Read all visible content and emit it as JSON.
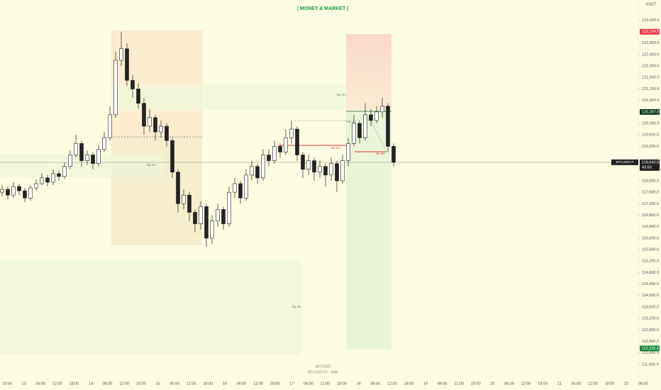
{
  "chart_data": {
    "type": "candlestick",
    "title": "| MONEY & MARKET |",
    "unit": "USDT",
    "date": "18/7/2025",
    "footer": "BTCUSDT.P · 60M",
    "time_labels": [
      "18:00",
      "13",
      "06:00",
      "12:00",
      "18:00",
      "14",
      "06:00",
      "12:00",
      "18:00",
      "15",
      "06:00",
      "12:00",
      "18:00",
      "16",
      "06:00",
      "12:00",
      "18:00",
      "17",
      "06:00",
      "12:00",
      "18:00",
      "18",
      "06:00",
      "12:00",
      "18:00",
      "19",
      "06:00",
      "12:00",
      "18:00",
      "20",
      "06:00",
      "12:00",
      "18:00",
      "21",
      "06:00",
      "12:00",
      "18:00",
      "22",
      "06:00"
    ],
    "open": [
      117600,
      117700,
      117500,
      117800,
      117650,
      117400,
      117750,
      117900,
      118100,
      117950,
      118250,
      118150,
      118500,
      118900,
      119300,
      118700,
      118900,
      118600,
      119100,
      119500,
      120300,
      122200,
      122600,
      121500,
      121200,
      120700,
      119900,
      120200,
      119700,
      119900,
      119400,
      118300,
      117200,
      117500,
      116900,
      116500,
      117100,
      116000,
      116600,
      117000,
      116500,
      117600,
      117900,
      117400,
      118200,
      118500,
      118100,
      118900,
      118700,
      119200,
      119000,
      119500,
      119800,
      118900,
      118400,
      118700,
      118300,
      118500,
      118200,
      118600,
      118000,
      118700,
      119300,
      120000,
      119500,
      120300,
      120100,
      120400,
      120600,
      119200
    ],
    "high": [
      117850,
      117800,
      117950,
      117900,
      117750,
      117850,
      118050,
      118250,
      118200,
      118400,
      118350,
      118650,
      119050,
      119600,
      119400,
      119050,
      119000,
      119250,
      119700,
      120600,
      122500,
      123194.5,
      122800,
      121700,
      121400,
      120900,
      120500,
      120300,
      120100,
      120000,
      119500,
      118400,
      117700,
      117600,
      117000,
      117300,
      117200,
      116800,
      117200,
      117100,
      117800,
      118100,
      118000,
      118400,
      118700,
      118600,
      119100,
      119100,
      119400,
      119300,
      119800,
      120100,
      119900,
      119000,
      118900,
      118800,
      118700,
      118600,
      118800,
      118700,
      118900,
      119500,
      120300,
      120100,
      120700,
      120500,
      120600,
      120900,
      120700,
      119300
    ],
    "low": [
      117450,
      117350,
      117400,
      117500,
      117250,
      117300,
      117650,
      117850,
      117800,
      117850,
      118000,
      118050,
      118400,
      118800,
      118500,
      118550,
      118400,
      118500,
      119000,
      119400,
      120200,
      122000,
      121300,
      120900,
      120500,
      119600,
      119700,
      119400,
      119500,
      119200,
      118100,
      116900,
      117000,
      116600,
      116200,
      116300,
      115700,
      115800,
      116400,
      116300,
      116400,
      117400,
      117200,
      117300,
      118000,
      117900,
      118000,
      118500,
      118600,
      118800,
      118900,
      119300,
      118700,
      118100,
      118200,
      118000,
      118100,
      117800,
      118000,
      117600,
      117900,
      118500,
      119200,
      119300,
      119400,
      119900,
      120000,
      120200,
      119000,
      118500
    ],
    "close": [
      117700,
      117500,
      117800,
      117650,
      117400,
      117750,
      117900,
      118100,
      117950,
      118250,
      118150,
      118500,
      118900,
      119300,
      118700,
      118900,
      118600,
      119100,
      119500,
      120300,
      122200,
      122600,
      121500,
      121200,
      120700,
      119900,
      120200,
      119700,
      119900,
      119400,
      118300,
      117200,
      117500,
      116900,
      116500,
      117100,
      116000,
      116600,
      117000,
      116500,
      117600,
      117900,
      117400,
      118200,
      118500,
      118100,
      118900,
      118700,
      119200,
      119000,
      119500,
      119800,
      118900,
      118400,
      118700,
      118300,
      118500,
      118200,
      118600,
      118000,
      118700,
      119300,
      120000,
      119500,
      120300,
      120100,
      120400,
      120600,
      119200,
      118643.9
    ],
    "ylim": [
      111400,
      124300
    ],
    "yticks": [
      {
        "value": 111600,
        "label": "111,600.0"
      },
      {
        "value": 112000,
        "label": "112,000.0"
      },
      {
        "value": 112400,
        "label": "112,400.0"
      },
      {
        "value": 112800,
        "label": "112,800.0"
      },
      {
        "value": 113200,
        "label": "113,200.0"
      },
      {
        "value": 113600,
        "label": "113,600.0"
      },
      {
        "value": 114000,
        "label": "114,000.0"
      },
      {
        "value": 114400,
        "label": "114,400.0"
      },
      {
        "value": 114800,
        "label": "114,800.0"
      },
      {
        "value": 115200,
        "label": "115,200.0"
      },
      {
        "value": 115600,
        "label": "115,600.0"
      },
      {
        "value": 116000,
        "label": "116,000.0"
      },
      {
        "value": 116400,
        "label": "116,400.0"
      },
      {
        "value": 116800,
        "label": "116,800.0"
      },
      {
        "value": 117200,
        "label": "117,200.0"
      },
      {
        "value": 117600,
        "label": "117,600.0"
      },
      {
        "value": 118000,
        "label": "118,000.0"
      },
      {
        "value": 118400,
        "label": "118,400.0"
      },
      {
        "value": 119200,
        "label": "119,200.0"
      },
      {
        "value": 119600,
        "label": "119,600.0"
      },
      {
        "value": 120000,
        "label": "120,000.0"
      },
      {
        "value": 120800,
        "label": "120,800.0"
      },
      {
        "value": 121200,
        "label": "121,200.0"
      },
      {
        "value": 121600,
        "label": "121,600.0"
      },
      {
        "value": 122000,
        "label": "122,000.0"
      },
      {
        "value": 122400,
        "label": "122,400.0"
      },
      {
        "value": 122800,
        "label": "122,800.0"
      },
      {
        "value": 123600,
        "label": "123,600.0"
      }
    ],
    "price_tags": [
      {
        "value": 123194.5,
        "label": "123,194.5",
        "color": "#f23645"
      },
      {
        "value": 120397.8,
        "label": "120,397.8",
        "color": "#0d3b1e"
      },
      {
        "value": 112155.6,
        "label": "112,155.6",
        "color": "#1b8a3a"
      }
    ],
    "last_price": {
      "value": 118643.9,
      "label": "118,643.9",
      "symbol": "BTCUSDT.P",
      "countdown": "43:50"
    },
    "annotations": [
      "fvg 4H",
      "fvg 1H",
      "fvg 1D",
      "OB 1H",
      "sw 1H",
      "sw 4H"
    ]
  }
}
